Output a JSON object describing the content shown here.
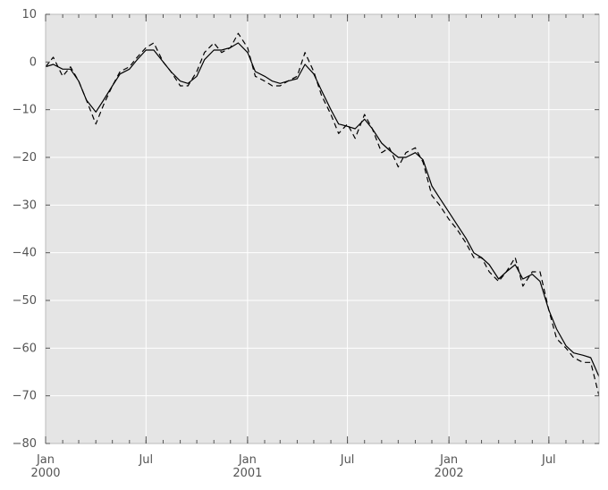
{
  "chart_data": {
    "type": "line",
    "title": "",
    "xlabel": "",
    "ylabel": "",
    "ylim": [
      -80,
      10
    ],
    "xlim": [
      "2000-01-01",
      "2002-09-30"
    ],
    "grid": true,
    "background_color": "#e5e5e5",
    "grid_color": "#ffffff",
    "y_ticks": [
      {
        "value": 10,
        "label": "10"
      },
      {
        "value": 0,
        "label": "0"
      },
      {
        "value": -10,
        "label": "−10"
      },
      {
        "value": -20,
        "label": "−20"
      },
      {
        "value": -30,
        "label": "−30"
      },
      {
        "value": -40,
        "label": "−40"
      },
      {
        "value": -50,
        "label": "−50"
      },
      {
        "value": -60,
        "label": "−60"
      },
      {
        "value": -70,
        "label": "−70"
      },
      {
        "value": -80,
        "label": "−80"
      }
    ],
    "x_major_ticks": [
      {
        "date": "2000-01-01",
        "label": "Jan",
        "sublabel": "2000"
      },
      {
        "date": "2000-07-01",
        "label": "Jul",
        "sublabel": ""
      },
      {
        "date": "2001-01-01",
        "label": "Jan",
        "sublabel": "2001"
      },
      {
        "date": "2001-07-01",
        "label": "Jul",
        "sublabel": ""
      },
      {
        "date": "2002-01-01",
        "label": "Jan",
        "sublabel": "2002"
      },
      {
        "date": "2002-07-01",
        "label": "Jul",
        "sublabel": ""
      }
    ],
    "series": [
      {
        "line_style": "dashed",
        "color": "#000000",
        "x": [
          "2000-01-01",
          "2000-01-15",
          "2000-02-01",
          "2000-02-15",
          "2000-03-01",
          "2000-03-15",
          "2000-04-01",
          "2000-04-15",
          "2000-05-01",
          "2000-05-15",
          "2000-06-01",
          "2000-06-15",
          "2000-07-01",
          "2000-07-15",
          "2000-08-01",
          "2000-08-15",
          "2000-09-01",
          "2000-09-15",
          "2000-10-01",
          "2000-10-15",
          "2000-11-01",
          "2000-11-15",
          "2000-12-01",
          "2000-12-15",
          "2001-01-01",
          "2001-01-15",
          "2001-02-01",
          "2001-02-15",
          "2001-03-01",
          "2001-03-15",
          "2001-04-01",
          "2001-04-15",
          "2001-05-01",
          "2001-05-15",
          "2001-06-01",
          "2001-06-15",
          "2001-07-01",
          "2001-07-15",
          "2001-08-01",
          "2001-08-15",
          "2001-09-01",
          "2001-09-15",
          "2001-10-01",
          "2001-10-15",
          "2001-11-01",
          "2001-11-15",
          "2001-12-01",
          "2001-12-15",
          "2002-01-01",
          "2002-01-15",
          "2002-02-01",
          "2002-02-15",
          "2002-03-01",
          "2002-03-15",
          "2002-04-01",
          "2002-04-15",
          "2002-05-01",
          "2002-05-15",
          "2002-06-01",
          "2002-06-15",
          "2002-07-01",
          "2002-07-15",
          "2002-08-01",
          "2002-08-15",
          "2002-09-01",
          "2002-09-15",
          "2002-09-30"
        ],
        "values": [
          -1,
          1,
          -3,
          -1,
          -4,
          -8,
          -13,
          -9,
          -5,
          -2,
          -1,
          1,
          3,
          4,
          0,
          -2,
          -5,
          -5,
          -2,
          2,
          4,
          2,
          3,
          6,
          3,
          -3,
          -4,
          -5,
          -5,
          -4,
          -3,
          2,
          -2,
          -7,
          -11,
          -15,
          -13,
          -16,
          -11,
          -14,
          -19,
          -18,
          -22,
          -19,
          -18,
          -21,
          -28,
          -30,
          -33,
          -35,
          -38,
          -41,
          -41,
          -44,
          -46,
          -44,
          -41,
          -47,
          -44,
          -44,
          -52,
          -58,
          -60,
          -62,
          -63,
          -63,
          -70
        ]
      },
      {
        "line_style": "solid",
        "color": "#000000",
        "x": [
          "2000-01-01",
          "2000-01-15",
          "2000-02-01",
          "2000-02-15",
          "2000-03-01",
          "2000-03-15",
          "2000-04-01",
          "2000-04-15",
          "2000-05-01",
          "2000-05-15",
          "2000-06-01",
          "2000-06-15",
          "2000-07-01",
          "2000-07-15",
          "2000-08-01",
          "2000-08-15",
          "2000-09-01",
          "2000-09-15",
          "2000-10-01",
          "2000-10-15",
          "2000-11-01",
          "2000-11-15",
          "2000-12-01",
          "2000-12-15",
          "2001-01-01",
          "2001-01-15",
          "2001-02-01",
          "2001-02-15",
          "2001-03-01",
          "2001-03-15",
          "2001-04-01",
          "2001-04-15",
          "2001-05-01",
          "2001-05-15",
          "2001-06-01",
          "2001-06-15",
          "2001-07-01",
          "2001-07-15",
          "2001-08-01",
          "2001-08-15",
          "2001-09-01",
          "2001-09-15",
          "2001-10-01",
          "2001-10-15",
          "2001-11-01",
          "2001-11-15",
          "2001-12-01",
          "2001-12-15",
          "2002-01-01",
          "2002-01-15",
          "2002-02-01",
          "2002-02-15",
          "2002-03-01",
          "2002-03-15",
          "2002-04-01",
          "2002-04-15",
          "2002-05-01",
          "2002-05-15",
          "2002-06-01",
          "2002-06-15",
          "2002-07-01",
          "2002-07-15",
          "2002-08-01",
          "2002-08-15",
          "2002-09-01",
          "2002-09-15",
          "2002-09-30"
        ],
        "values": [
          -1,
          -0.5,
          -1.5,
          -1.5,
          -4,
          -8,
          -10.5,
          -8,
          -5,
          -2.5,
          -1.5,
          0.5,
          2.5,
          2.5,
          0,
          -2,
          -4,
          -4.5,
          -3,
          0.5,
          2.5,
          2.5,
          3,
          4,
          2,
          -2,
          -3,
          -4,
          -4.5,
          -4,
          -3.5,
          -0.5,
          -2.5,
          -6,
          -10,
          -13,
          -13.5,
          -14,
          -12,
          -14,
          -17,
          -18.5,
          -20,
          -20,
          -19,
          -20.5,
          -26,
          -28.5,
          -31.5,
          -34,
          -37,
          -40,
          -41,
          -42.5,
          -45.5,
          -44,
          -42.5,
          -45.5,
          -44.5,
          -46,
          -52,
          -56,
          -59.5,
          -61,
          -61.5,
          -62,
          -66
        ]
      }
    ]
  }
}
